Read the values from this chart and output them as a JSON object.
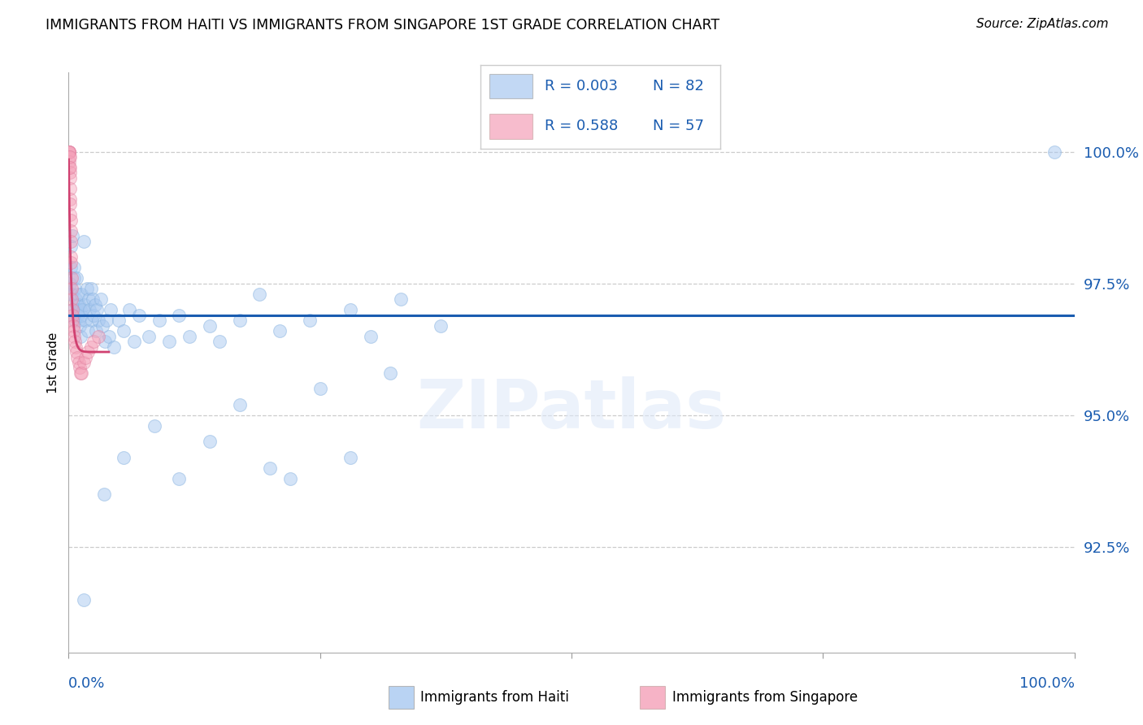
{
  "title": "IMMIGRANTS FROM HAITI VS IMMIGRANTS FROM SINGAPORE 1ST GRADE CORRELATION CHART",
  "source": "Source: ZipAtlas.com",
  "ylabel": "1st Grade",
  "legend_blue_r": "R = 0.003",
  "legend_blue_n": "N = 82",
  "legend_pink_r": "R = 0.588",
  "legend_pink_n": "N = 57",
  "blue_color": "#a8c8f0",
  "pink_color": "#f4a0b8",
  "regression_blue_color": "#1a5cb0",
  "regression_pink_color": "#d04070",
  "ytick_labels": [
    "100.0%",
    "97.5%",
    "95.0%",
    "92.5%"
  ],
  "ytick_values": [
    100.0,
    97.5,
    95.0,
    92.5
  ],
  "xlim": [
    0.0,
    100.0
  ],
  "ylim": [
    90.5,
    101.5
  ],
  "blue_regression_y": 96.9,
  "blue_x": [
    0.15,
    0.2,
    0.25,
    0.3,
    0.35,
    0.4,
    0.5,
    0.55,
    0.6,
    0.65,
    0.7,
    0.75,
    0.8,
    0.85,
    0.9,
    0.95,
    1.0,
    1.05,
    1.1,
    1.15,
    1.2,
    1.25,
    1.3,
    1.4,
    1.5,
    1.6,
    1.7,
    1.8,
    1.9,
    2.0,
    2.1,
    2.2,
    2.3,
    2.4,
    2.5,
    2.6,
    2.7,
    2.8,
    3.0,
    3.2,
    3.4,
    3.6,
    3.8,
    4.0,
    4.2,
    4.5,
    5.0,
    5.5,
    6.0,
    6.5,
    7.0,
    8.0,
    9.0,
    10.0,
    11.0,
    12.0,
    14.0,
    15.0,
    17.0,
    19.0,
    21.0,
    24.0,
    28.0,
    30.0,
    33.0,
    37.0,
    98.0
  ],
  "blue_y": [
    97.5,
    98.2,
    97.8,
    97.3,
    98.4,
    97.0,
    97.6,
    97.8,
    96.8,
    97.4,
    97.2,
    97.6,
    97.1,
    96.9,
    97.0,
    97.3,
    96.8,
    97.1,
    96.7,
    97.0,
    96.5,
    96.9,
    97.3,
    97.0,
    98.3,
    97.1,
    96.8,
    97.4,
    96.6,
    97.2,
    97.0,
    97.4,
    96.8,
    97.2,
    96.9,
    97.1,
    96.6,
    97.0,
    96.8,
    97.2,
    96.7,
    96.4,
    96.8,
    96.5,
    97.0,
    96.3,
    96.8,
    96.6,
    97.0,
    96.4,
    96.9,
    96.5,
    96.8,
    96.4,
    96.9,
    96.5,
    96.7,
    96.4,
    96.8,
    97.3,
    96.6,
    96.8,
    97.0,
    96.5,
    97.2,
    96.7,
    100.0
  ],
  "blue_x_outliers": [
    1.5,
    3.5,
    5.5,
    8.5,
    11.0,
    14.0,
    17.0,
    20.0,
    22.0,
    25.0,
    28.0,
    32.0
  ],
  "blue_y_outliers": [
    91.5,
    93.5,
    94.2,
    94.8,
    93.8,
    94.5,
    95.2,
    94.0,
    93.8,
    95.5,
    94.2,
    95.8
  ],
  "pink_x": [
    0.02,
    0.03,
    0.05,
    0.06,
    0.07,
    0.08,
    0.09,
    0.1,
    0.11,
    0.12,
    0.13,
    0.14,
    0.15,
    0.16,
    0.17,
    0.18,
    0.19,
    0.2,
    0.22,
    0.25,
    0.28,
    0.3,
    0.32,
    0.35,
    0.38,
    0.4,
    0.45,
    0.5,
    0.55,
    0.6,
    0.7,
    0.8,
    0.9,
    1.0,
    1.1,
    1.2,
    1.3,
    1.5,
    1.7,
    1.9,
    2.2,
    2.5,
    3.0
  ],
  "pink_y": [
    100.0,
    100.0,
    100.0,
    100.0,
    99.8,
    99.9,
    99.7,
    99.9,
    99.6,
    99.5,
    99.7,
    99.3,
    99.1,
    99.0,
    98.8,
    98.7,
    98.5,
    98.3,
    98.0,
    97.9,
    97.6,
    97.4,
    97.2,
    97.0,
    96.9,
    96.8,
    96.7,
    96.6,
    96.5,
    96.4,
    96.3,
    96.2,
    96.1,
    96.0,
    95.9,
    95.8,
    95.8,
    96.0,
    96.1,
    96.2,
    96.3,
    96.4,
    96.5
  ]
}
